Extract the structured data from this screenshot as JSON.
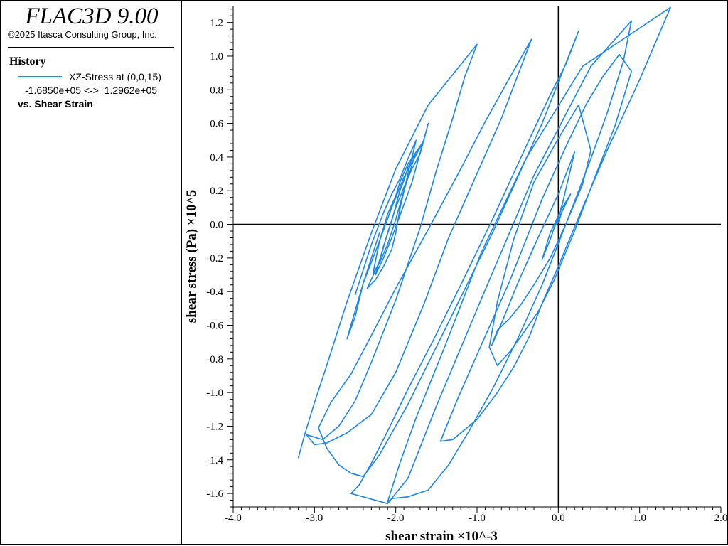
{
  "app": {
    "title": "FLAC3D 9.00",
    "copyright": "©2025 Itasca Consulting Group, Inc."
  },
  "legend": {
    "heading": "History",
    "series_label": "XZ-Stress at (0,0,15)",
    "range_text": "-1.6850e+05 <->  1.2962e+05",
    "vs_label": "vs. Shear Strain"
  },
  "colors": {
    "series": "#1a87e8",
    "axis": "#000000"
  },
  "chart_data": {
    "type": "line",
    "xlabel": "shear strain ×10^-3",
    "ylabel": "shear stress (Pa) ×10^5",
    "xlim": [
      -4.0,
      2.0
    ],
    "ylim": [
      -1.68,
      1.3
    ],
    "xticks": [
      "-4.0",
      "-3.0",
      "-2.0",
      "-1.0",
      "0.0",
      "1.0",
      "2.0"
    ],
    "yticks": [
      "-1.6",
      "-1.4",
      "-1.2",
      "-1.0",
      "-0.8",
      "-0.6",
      "-0.4",
      "-0.2",
      "0.0",
      "0.2",
      "0.4",
      "0.6",
      "0.8",
      "1.0",
      "1.2"
    ],
    "series": [
      {
        "x": [
          -3.2,
          -3.12,
          -3.0,
          -2.85,
          -2.6,
          -2.3,
          -2.0,
          -1.6,
          -1.0,
          -1.15,
          -1.3,
          -1.5,
          -1.7,
          -2.0,
          -2.3,
          -2.5,
          -2.7,
          -2.9,
          -3.1,
          -3.0,
          -2.85,
          -2.6,
          -2.3,
          -2.0,
          -1.65,
          -1.35,
          -0.7,
          -0.33,
          -0.6,
          -0.9,
          -1.2,
          -1.6,
          -2.0,
          -2.3,
          -2.55,
          -2.8,
          -2.95,
          -2.85,
          -2.7,
          -2.55,
          -2.4,
          -2.2,
          -1.85,
          -1.4,
          -0.8,
          -0.2,
          0.25,
          0.1,
          -0.1,
          -0.4,
          -0.8,
          -1.2,
          -1.55,
          -1.85,
          -2.1,
          -2.3,
          -2.45,
          -2.55,
          -2.1,
          -1.85,
          -1.5,
          -0.9,
          -0.3,
          0.4,
          0.9,
          0.8,
          0.6,
          0.4,
          0.1,
          -0.2,
          -0.5,
          -0.8,
          -1.1,
          -1.35,
          -1.6,
          -1.85,
          -2.05,
          -2.1,
          -1.95,
          -1.75,
          -1.4,
          -0.95,
          -0.4,
          0.3,
          1.38,
          1.0,
          0.6,
          0.3,
          0.0,
          -0.2,
          -0.35,
          -0.55,
          -0.75,
          -1.0,
          -1.3,
          -1.45,
          -1.25,
          -0.95,
          -0.6,
          -0.2,
          0.1,
          0.35,
          0.55,
          0.75,
          0.9,
          0.7,
          0.45,
          0.2,
          -0.05,
          -0.25,
          -0.45,
          -0.6,
          -0.75,
          -0.85,
          -0.75,
          -0.55,
          -0.3,
          0.0,
          0.25,
          0.4,
          0.3,
          0.1,
          -0.1,
          -0.3,
          -0.45,
          -0.6,
          -0.75,
          -0.82,
          -0.7,
          -0.5,
          -0.25,
          0.0,
          0.2,
          0.05,
          -0.1,
          -0.2,
          -0.1,
          0.05,
          0.15,
          0.0,
          -0.05,
          0.05,
          0.0
        ],
        "y": [
          -1.39,
          -1.25,
          -1.06,
          -0.84,
          -0.46,
          -0.05,
          0.33,
          0.71,
          1.07,
          0.88,
          0.63,
          0.32,
          -0.02,
          -0.45,
          -0.82,
          -1.05,
          -1.2,
          -1.28,
          -1.25,
          -1.31,
          -1.3,
          -1.24,
          -1.13,
          -0.88,
          -0.47,
          -0.08,
          0.63,
          1.1,
          0.87,
          0.61,
          0.33,
          -0.03,
          -0.38,
          -0.66,
          -0.89,
          -1.06,
          -1.21,
          -1.33,
          -1.43,
          -1.48,
          -1.5,
          -1.37,
          -1.07,
          -0.63,
          -0.04,
          0.6,
          1.15,
          0.96,
          0.77,
          0.46,
          0.04,
          -0.36,
          -0.7,
          -0.98,
          -1.23,
          -1.42,
          -1.55,
          -1.6,
          -1.66,
          -1.51,
          -1.08,
          -0.39,
          0.29,
          0.94,
          1.21,
          0.97,
          0.66,
          0.39,
          0.01,
          -0.36,
          -0.68,
          -0.97,
          -1.23,
          -1.43,
          -1.58,
          -1.62,
          -1.63,
          -1.65,
          -1.42,
          -1.15,
          -0.73,
          -0.17,
          0.39,
          0.94,
          1.29,
          0.86,
          0.44,
          0.1,
          -0.25,
          -0.47,
          -0.66,
          -0.85,
          -1.0,
          -1.16,
          -1.28,
          -1.29,
          -1.05,
          -0.72,
          -0.34,
          0.15,
          0.47,
          0.72,
          0.88,
          1.01,
          0.91,
          0.59,
          0.28,
          -0.04,
          -0.33,
          -0.52,
          -0.66,
          -0.76,
          -0.84,
          -0.73,
          -0.46,
          -0.09,
          0.25,
          0.51,
          0.71,
          0.44,
          0.24,
          0.01,
          -0.2,
          -0.36,
          -0.47,
          -0.56,
          -0.63,
          -0.72,
          -0.59,
          -0.35,
          -0.08,
          0.18,
          0.43,
          0.12,
          -0.09,
          -0.21,
          -0.05,
          0.1,
          0.18,
          0.03,
          -0.02,
          0.08,
          0.01
        ]
      },
      {
        "x": [
          -2.5,
          -2.3,
          -2.15,
          -2.05,
          -1.95,
          -1.85,
          -1.75,
          -1.85,
          -1.95,
          -2.0,
          -2.05,
          -2.15,
          -2.25,
          -2.35,
          -2.2,
          -2.1,
          -2.0,
          -1.9,
          -1.8,
          -1.7,
          -1.6,
          -1.8,
          -1.95,
          -2.05,
          -2.15,
          -2.25,
          -2.15,
          -2.05,
          -2.0,
          -1.95,
          -1.9,
          -1.85,
          -1.75,
          -1.9,
          -2.0,
          -2.1,
          -2.2,
          -2.28,
          -2.2,
          -2.1,
          -2.0,
          -1.95,
          -1.85,
          -1.65,
          -1.9,
          -2.05,
          -2.2,
          -2.4,
          -2.5,
          -2.6,
          -2.4,
          -2.2
        ],
        "y": [
          -0.42,
          -0.12,
          0.07,
          0.18,
          0.27,
          0.39,
          0.5,
          0.3,
          0.09,
          -0.05,
          -0.15,
          -0.25,
          -0.33,
          -0.38,
          -0.22,
          -0.05,
          0.1,
          0.22,
          0.33,
          0.42,
          0.6,
          0.25,
          0.05,
          -0.08,
          -0.2,
          -0.3,
          -0.13,
          0.02,
          0.11,
          0.2,
          0.26,
          0.34,
          0.43,
          0.2,
          0.03,
          -0.12,
          -0.23,
          -0.29,
          -0.1,
          0.06,
          0.17,
          0.25,
          0.36,
          0.5,
          0.28,
          0.1,
          -0.1,
          -0.35,
          -0.55,
          -0.68,
          -0.35,
          -0.05
        ]
      }
    ]
  }
}
